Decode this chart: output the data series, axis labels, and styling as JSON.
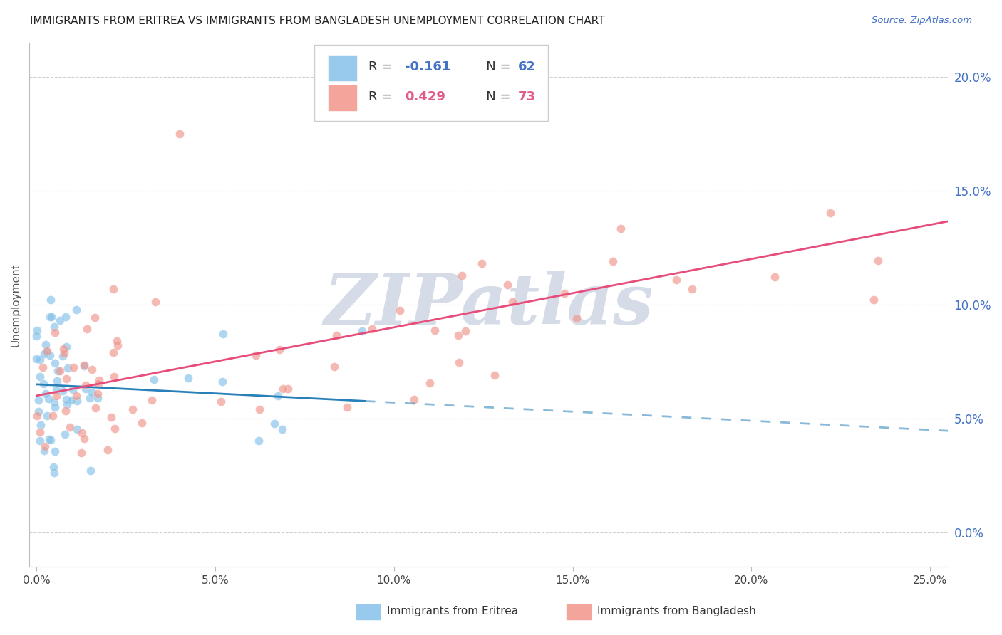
{
  "title": "IMMIGRANTS FROM ERITREA VS IMMIGRANTS FROM BANGLADESH UNEMPLOYMENT CORRELATION CHART",
  "source": "Source: ZipAtlas.com",
  "ylabel": "Unemployment",
  "xlabel_ticks": [
    "0.0%",
    "5.0%",
    "10.0%",
    "15.0%",
    "20.0%",
    "25.0%"
  ],
  "xlabel_vals": [
    0.0,
    0.05,
    0.1,
    0.15,
    0.2,
    0.25
  ],
  "ylabel_ticks": [
    "0.0%",
    "5.0%",
    "10.0%",
    "15.0%",
    "20.0%"
  ],
  "ylabel_vals": [
    0.0,
    0.05,
    0.1,
    0.15,
    0.2
  ],
  "xlim": [
    -0.002,
    0.255
  ],
  "ylim": [
    -0.015,
    0.215
  ],
  "legend_eritrea_R": "-0.161",
  "legend_eritrea_N": "62",
  "legend_bangladesh_R": "0.429",
  "legend_bangladesh_N": "73",
  "eritrea_color": "#85c1e9",
  "bangladesh_color": "#f1948a",
  "eritrea_line_color": "#2980b9",
  "bangladesh_line_color": "#e74c7a",
  "watermark": "ZIPatlas",
  "watermark_color": "#d5dce8",
  "background_color": "#ffffff",
  "r_color_eritrea": "#4472c4",
  "r_color_bangladesh": "#e05a8a",
  "n_color_eritrea": "#4472c4",
  "n_color_bangladesh": "#e05a8a"
}
